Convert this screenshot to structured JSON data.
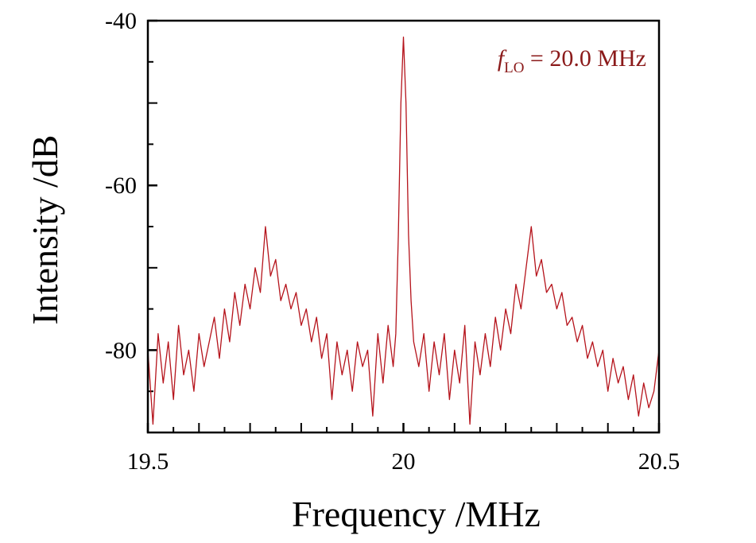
{
  "chart_data": {
    "type": "line",
    "title": "",
    "xlabel": "Frequency /MHz",
    "ylabel": "Intensity /dB",
    "xlim": [
      19.5,
      20.5
    ],
    "ylim": [
      -90,
      -40
    ],
    "x_ticks": [
      {
        "value": 19.5,
        "label": "19.5"
      },
      {
        "value": 20.0,
        "label": "20"
      },
      {
        "value": 20.5,
        "label": "20.5"
      }
    ],
    "y_ticks": [
      {
        "value": -40,
        "label": "-40"
      },
      {
        "value": -60,
        "label": "-60"
      },
      {
        "value": -80,
        "label": "-80"
      }
    ],
    "x_minor_step": 0.05,
    "y_minor_step": 5,
    "grid": false,
    "legend": "none",
    "colors": {
      "series": "#b5131b",
      "annotation": "#8b1a1a",
      "axis": "#000000"
    },
    "annotation": {
      "italic": "f",
      "subscript": "LO",
      "text": " = 20.0 MHz",
      "position": "top-right"
    },
    "series": [
      {
        "x": [
          19.5,
          19.51,
          19.52,
          19.53,
          19.54,
          19.55,
          19.56,
          19.57,
          19.58,
          19.59,
          19.6,
          19.61,
          19.62,
          19.63,
          19.64,
          19.65,
          19.66,
          19.67,
          19.68,
          19.69,
          19.7,
          19.71,
          19.72,
          19.73,
          19.74,
          19.75,
          19.76,
          19.77,
          19.78,
          19.79,
          19.8,
          19.81,
          19.82,
          19.83,
          19.84,
          19.85,
          19.86,
          19.87,
          19.88,
          19.89,
          19.9,
          19.91,
          19.92,
          19.93,
          19.94,
          19.95,
          19.96,
          19.97,
          19.98,
          19.985,
          19.99,
          19.995,
          20.0,
          20.005,
          20.01,
          20.015,
          20.02,
          20.03,
          20.04,
          20.05,
          20.06,
          20.07,
          20.08,
          20.09,
          20.1,
          20.11,
          20.12,
          20.13,
          20.14,
          20.15,
          20.16,
          20.17,
          20.18,
          20.19,
          20.2,
          20.21,
          20.22,
          20.23,
          20.24,
          20.25,
          20.26,
          20.27,
          20.28,
          20.29,
          20.3,
          20.31,
          20.32,
          20.33,
          20.34,
          20.35,
          20.36,
          20.37,
          20.38,
          20.39,
          20.4,
          20.41,
          20.42,
          20.43,
          20.44,
          20.45,
          20.46,
          20.47,
          20.48,
          20.49,
          20.5
        ],
        "y": [
          -80,
          -89,
          -78,
          -84,
          -79,
          -86,
          -77,
          -83,
          -80,
          -85,
          -78,
          -82,
          -79,
          -76,
          -81,
          -75,
          -79,
          -73,
          -77,
          -72,
          -75,
          -70,
          -73,
          -65,
          -71,
          -69,
          -74,
          -72,
          -75,
          -73,
          -77,
          -75,
          -79,
          -76,
          -81,
          -78,
          -86,
          -79,
          -83,
          -80,
          -85,
          -79,
          -82,
          -80,
          -88,
          -78,
          -84,
          -77,
          -82,
          -78,
          -66,
          -50,
          -42,
          -50,
          -66,
          -74,
          -79,
          -82,
          -78,
          -85,
          -79,
          -83,
          -78,
          -86,
          -80,
          -84,
          -77,
          -89,
          -79,
          -83,
          -78,
          -82,
          -76,
          -80,
          -75,
          -78,
          -72,
          -75,
          -70,
          -65,
          -71,
          -69,
          -73,
          -72,
          -75,
          -73,
          -77,
          -76,
          -79,
          -77,
          -81,
          -79,
          -82,
          -80,
          -85,
          -81,
          -84,
          -82,
          -86,
          -83,
          -88,
          -84,
          -87,
          -85,
          -80
        ]
      }
    ]
  }
}
